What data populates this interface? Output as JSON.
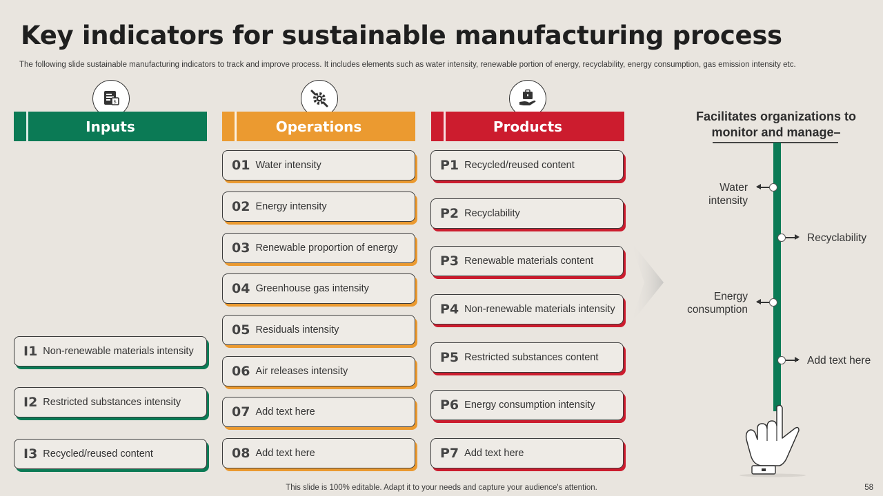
{
  "title": "Key indicators for sustainable manufacturing process",
  "subtitle": "The following slide sustainable manufacturing indicators to track and improve process. It includes elements such as water intensity, renewable portion of energy, recyclability,  energy consumption, gas emission intensity etc.",
  "colors": {
    "inputs": "#0b7a55",
    "operations": "#eb9a30",
    "products": "#cc1c2e",
    "background": "#e9e5df"
  },
  "columns": {
    "inputs": {
      "header": "Inputs",
      "icon": "document-tag-icon",
      "items": [
        {
          "code": "I1",
          "label": "Non-renewable  materials intensity"
        },
        {
          "code": "I2",
          "label": "Restricted substances intensity"
        },
        {
          "code": "I3",
          "label": "Recycled/reused content"
        }
      ]
    },
    "operations": {
      "header": "Operations",
      "icon": "gear-wrench-icon",
      "items": [
        {
          "code": "01",
          "label": "Water intensity"
        },
        {
          "code": "02",
          "label": "Energy intensity"
        },
        {
          "code": "03",
          "label": "Renewable proportion of energy"
        },
        {
          "code": "04",
          "label": "Greenhouse gas intensity"
        },
        {
          "code": "05",
          "label": "Residuals intensity"
        },
        {
          "code": "06",
          "label": "Air releases intensity"
        },
        {
          "code": "07",
          "label": "Add text here"
        },
        {
          "code": "08",
          "label": "Add text here"
        }
      ]
    },
    "products": {
      "header": "Products",
      "icon": "briefcase-hand-icon",
      "items": [
        {
          "code": "P1",
          "label": "Recycled/reused content"
        },
        {
          "code": "P2",
          "label": "Recyclability"
        },
        {
          "code": "P3",
          "label": "Renewable materials content"
        },
        {
          "code": "P4",
          "label": "Non-renewable materials intensity"
        },
        {
          "code": "P5",
          "label": "Restricted substances content"
        },
        {
          "code": "P6",
          "label": "Energy consumption intensity"
        },
        {
          "code": "P7",
          "label": "Add text here"
        }
      ]
    }
  },
  "facilitates": {
    "title_line1": "Facilitates organizations to",
    "title_line2": "monitor and manage–",
    "points": {
      "p1_line1": "Water",
      "p1_line2": "intensity",
      "p2": "Recyclability",
      "p3_line1": "Energy",
      "p3_line2": "consumption",
      "p4": "Add text here"
    }
  },
  "footer": "This slide is 100% editable. Adapt it to your needs and capture your audience's attention.",
  "page_number": "58"
}
